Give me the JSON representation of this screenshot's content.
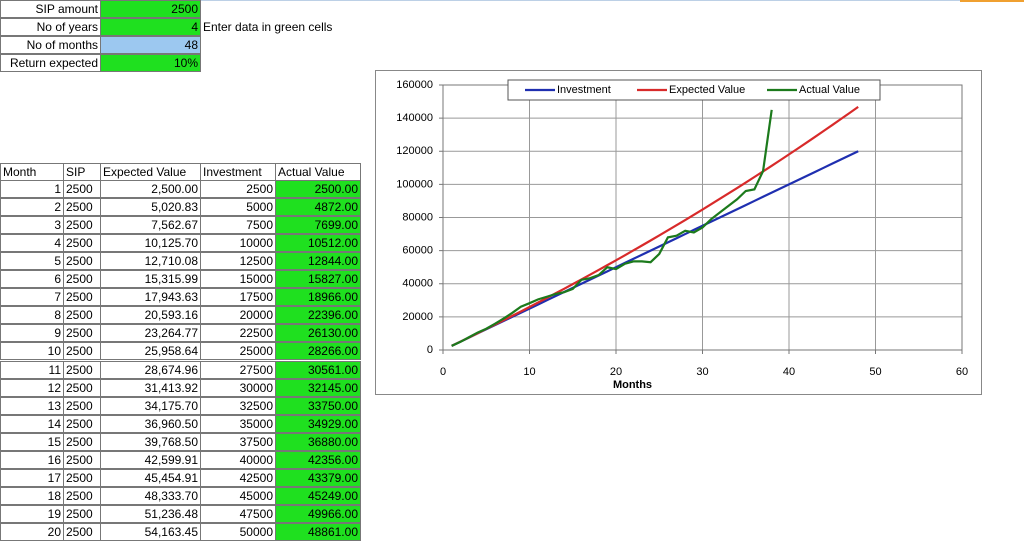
{
  "inputs": [
    {
      "label": "SIP amount",
      "value": "2500"
    },
    {
      "label": "No of years",
      "value": "4"
    },
    {
      "label": "No of months",
      "value": "48"
    },
    {
      "label": "Return expected",
      "value": "10%"
    }
  ],
  "note": "Enter data in green cells",
  "table": {
    "header": [
      "Month",
      "SIP",
      "Expected Value",
      "Investment",
      "Actual Value"
    ],
    "rows": [
      [
        "1",
        "2500",
        "2,500.00",
        "2500",
        "2500.00"
      ],
      [
        "2",
        "2500",
        "5,020.83",
        "5000",
        "4872.00"
      ],
      [
        "3",
        "2500",
        "7,562.67",
        "7500",
        "7699.00"
      ],
      [
        "4",
        "2500",
        "10,125.70",
        "10000",
        "10512.00"
      ],
      [
        "5",
        "2500",
        "12,710.08",
        "12500",
        "12844.00"
      ],
      [
        "6",
        "2500",
        "15,315.99",
        "15000",
        "15827.00"
      ],
      [
        "7",
        "2500",
        "17,943.63",
        "17500",
        "18966.00"
      ],
      [
        "8",
        "2500",
        "20,593.16",
        "20000",
        "22396.00"
      ],
      [
        "9",
        "2500",
        "23,264.77",
        "22500",
        "26130.00"
      ],
      [
        "10",
        "2500",
        "25,958.64",
        "25000",
        "28266.00"
      ],
      [
        "11",
        "2500",
        "28,674.96",
        "27500",
        "30561.00"
      ],
      [
        "12",
        "2500",
        "31,413.92",
        "30000",
        "32145.00"
      ],
      [
        "13",
        "2500",
        "34,175.70",
        "32500",
        "33750.00"
      ],
      [
        "14",
        "2500",
        "36,960.50",
        "35000",
        "34929.00"
      ],
      [
        "15",
        "2500",
        "39,768.50",
        "37500",
        "36880.00"
      ],
      [
        "16",
        "2500",
        "42,599.91",
        "40000",
        "42356.00"
      ],
      [
        "17",
        "2500",
        "45,454.91",
        "42500",
        "43379.00"
      ],
      [
        "18",
        "2500",
        "48,333.70",
        "45000",
        "45249.00"
      ],
      [
        "19",
        "2500",
        "51,236.48",
        "47500",
        "49966.00"
      ],
      [
        "20",
        "2500",
        "54,163.45",
        "50000",
        "48861.00"
      ]
    ]
  },
  "chart_data": {
    "type": "line",
    "xlabel": "Months",
    "x": [
      1,
      2,
      3,
      4,
      5,
      6,
      7,
      8,
      9,
      10,
      11,
      12,
      13,
      14,
      15,
      16,
      17,
      18,
      19,
      20,
      21,
      22,
      23,
      24,
      25,
      26,
      27,
      28,
      29,
      30,
      31,
      32,
      33,
      34,
      35,
      36,
      37,
      38,
      39,
      40,
      41,
      42,
      43,
      44,
      45,
      46,
      47,
      48
    ],
    "xlim": [
      0,
      60
    ],
    "xticks": [
      0,
      10,
      20,
      30,
      40,
      50,
      60
    ],
    "ylim": [
      0,
      160000
    ],
    "yticks": [
      0,
      20000,
      40000,
      60000,
      80000,
      100000,
      120000,
      140000,
      160000
    ],
    "grid": true,
    "legend": "top",
    "series": [
      {
        "name": "Investment",
        "color": "#1f2fb0",
        "values": [
          2500,
          5000,
          7500,
          10000,
          12500,
          15000,
          17500,
          20000,
          22500,
          25000,
          27500,
          30000,
          32500,
          35000,
          37500,
          40000,
          42500,
          45000,
          47500,
          50000,
          52500,
          55000,
          57500,
          60000,
          62500,
          65000,
          67500,
          70000,
          72500,
          75000,
          77500,
          80000,
          82500,
          85000,
          87500,
          90000,
          92500,
          95000,
          97500,
          100000,
          102500,
          105000,
          107500,
          110000,
          112500,
          115000,
          117500,
          120000
        ]
      },
      {
        "name": "Expected Value",
        "color": "#d82a2a",
        "values": [
          2500,
          5021,
          7563,
          10126,
          12710,
          15316,
          17944,
          20593,
          23265,
          25959,
          28675,
          31414,
          34176,
          36961,
          39769,
          42600,
          45455,
          48334,
          51236,
          54163,
          57115,
          60091,
          63092,
          66117,
          69168,
          72245,
          75347,
          78475,
          81629,
          84809,
          88016,
          91249,
          94509,
          97797,
          101112,
          104455,
          107825,
          111224,
          114650,
          118106,
          121590,
          125103,
          128646,
          132218,
          135820,
          139452,
          143114,
          146806
        ]
      },
      {
        "name": "Actual Value",
        "color": "#1c7a1c",
        "values": [
          2500,
          4872,
          7699,
          10512,
          12844,
          15827,
          18966,
          22396,
          26130,
          28266,
          30561,
          32145,
          33750,
          34929,
          36880,
          42356,
          43379,
          45249,
          49966,
          48861,
          52000,
          53500,
          53500,
          53000,
          58000,
          68000,
          69000,
          72000,
          71000,
          74000,
          79000,
          83000,
          87000,
          91000,
          96000,
          97000,
          108000,
          145000,
          null,
          null,
          null,
          null,
          null,
          null,
          null,
          null,
          null,
          null
        ]
      }
    ]
  }
}
